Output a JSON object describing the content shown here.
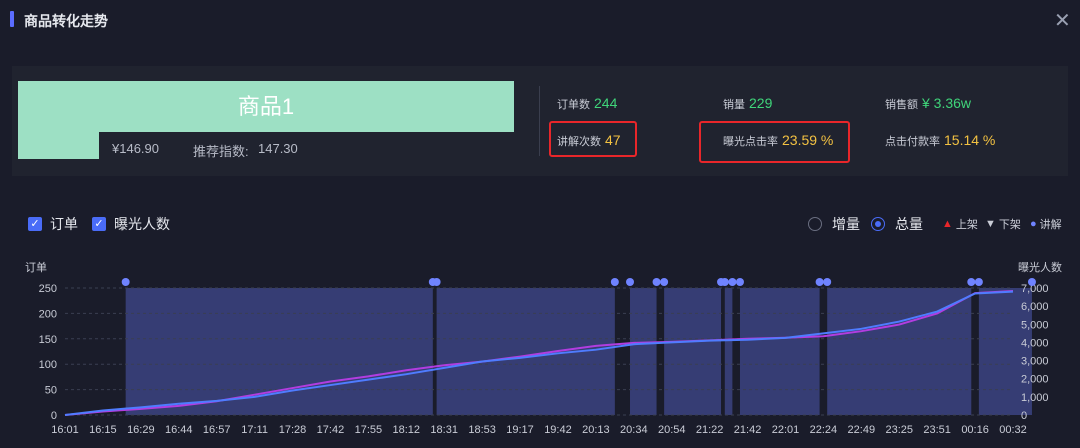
{
  "header": {
    "title": "商品转化走势",
    "close_icon": "close-icon"
  },
  "product": {
    "name": "商品1",
    "price": "¥146.90",
    "rec_label": "推荐指数:",
    "rec_value": "147.30"
  },
  "metrics": [
    {
      "label": "订单数",
      "value": "244",
      "color": "green"
    },
    {
      "label": "销量",
      "value": "229",
      "color": "green"
    },
    {
      "label": "销售额",
      "value": "¥ 3.36w",
      "color": "green"
    },
    {
      "label": "讲解次数",
      "value": "47",
      "color": "yellow"
    },
    {
      "label": "曝光点击率",
      "value": "23.59 %",
      "color": "yellow"
    },
    {
      "label": "点击付款率",
      "value": "15.14 %",
      "color": "yellow"
    }
  ],
  "legend": {
    "orders": "订单",
    "exposure": "曝光人数",
    "increment": "增量",
    "total": "总量",
    "listed": "上架",
    "delisted": "下架",
    "explain": "讲解"
  },
  "chart_data": {
    "type": "line",
    "ylabel_left": "订单",
    "ylabel_right": "曝光人数",
    "ylim_left": [
      0,
      250
    ],
    "ylim_right": [
      0,
      7000
    ],
    "y_ticks_left": [
      "0",
      "50",
      "100",
      "150",
      "200",
      "250"
    ],
    "y_ticks_right": [
      "0",
      "1,000",
      "2,000",
      "3,000",
      "4,000",
      "5,000",
      "6,000",
      "7,000"
    ],
    "x_ticks": [
      "16:01",
      "16:15",
      "16:29",
      "16:44",
      "16:57",
      "17:11",
      "17:28",
      "17:42",
      "17:55",
      "18:12",
      "18:31",
      "18:53",
      "19:17",
      "19:42",
      "20:13",
      "20:34",
      "20:54",
      "21:22",
      "21:42",
      "22:01",
      "22:24",
      "22:49",
      "23:25",
      "23:51",
      "00:16",
      "00:32"
    ],
    "grid": true,
    "series": [
      {
        "name": "订单",
        "color": "#b23de0",
        "axis": "left",
        "values": [
          0,
          7,
          12,
          18,
          27,
          40,
          53,
          66,
          76,
          88,
          98,
          105,
          115,
          126,
          136,
          142,
          144,
          147,
          150,
          152,
          155,
          165,
          178,
          200,
          240,
          244
        ]
      },
      {
        "name": "曝光人数",
        "color": "#4f7cff",
        "axis": "right",
        "values": [
          0,
          250,
          420,
          620,
          780,
          1000,
          1350,
          1650,
          1950,
          2250,
          2600,
          2950,
          3150,
          3400,
          3600,
          3900,
          4000,
          4100,
          4150,
          4250,
          4500,
          4750,
          5150,
          5700,
          6700,
          6800
        ]
      }
    ],
    "explain_bands": [
      [
        1.6,
        9.7
      ],
      [
        9.8,
        14.5
      ],
      [
        14.9,
        15.6
      ],
      [
        15.8,
        17.3
      ],
      [
        17.4,
        17.6
      ],
      [
        17.8,
        19.9
      ],
      [
        20.1,
        23.9
      ],
      [
        24.1,
        25.5
      ]
    ]
  }
}
